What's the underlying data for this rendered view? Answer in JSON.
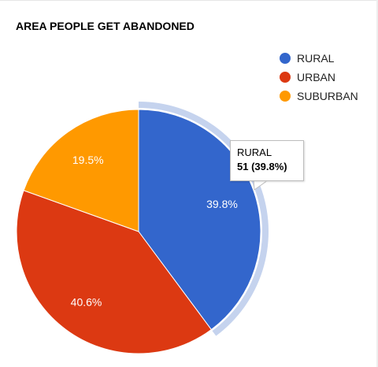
{
  "chart_data": {
    "type": "pie",
    "title": "AREA PEOPLE GET ABANDONED",
    "categories": [
      "RURAL",
      "URBAN",
      "SUBURBAN"
    ],
    "values": [
      51,
      52,
      25
    ],
    "percent_labels": [
      "39.8%",
      "40.6%",
      "19.5%"
    ],
    "colors": [
      "#3366cc",
      "#dc3912",
      "#ff9900"
    ],
    "legend": "right",
    "highlighted_index": 0,
    "highlight_color": "#c5d3ee"
  },
  "tooltip": {
    "title": "RURAL",
    "value": "51 (39.8%)"
  }
}
